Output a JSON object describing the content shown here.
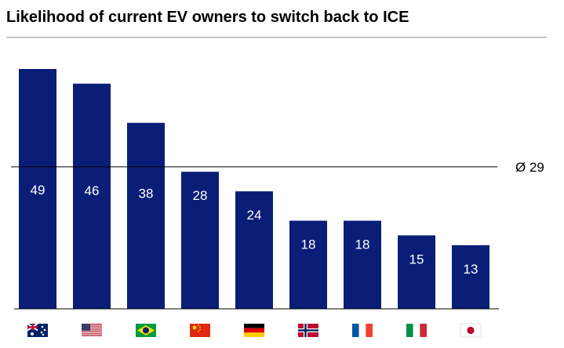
{
  "chart_data": {
    "type": "bar",
    "title": "Likelihood of current EV owners to switch back to ICE",
    "categories": [
      "Australia",
      "United States",
      "Brazil",
      "China",
      "Germany",
      "Norway",
      "France",
      "Italy",
      "Japan"
    ],
    "category_icons": [
      "flag-australia-icon",
      "flag-usa-icon",
      "flag-brazil-icon",
      "flag-china-icon",
      "flag-germany-icon",
      "flag-norway-icon",
      "flag-france-icon",
      "flag-italy-icon",
      "flag-japan-icon"
    ],
    "values": [
      49,
      46,
      38,
      28,
      24,
      18,
      18,
      15,
      13
    ],
    "value_labels": [
      "49",
      "46",
      "38",
      "28",
      "24",
      "18",
      "18",
      "15",
      "13"
    ],
    "reference_line": {
      "value": 29,
      "label": "Ø 29"
    },
    "ylim": [
      0,
      52
    ],
    "grid": false,
    "legend": "none",
    "bar_color": "#0a1e78",
    "value_label_color": "#ffffff"
  }
}
